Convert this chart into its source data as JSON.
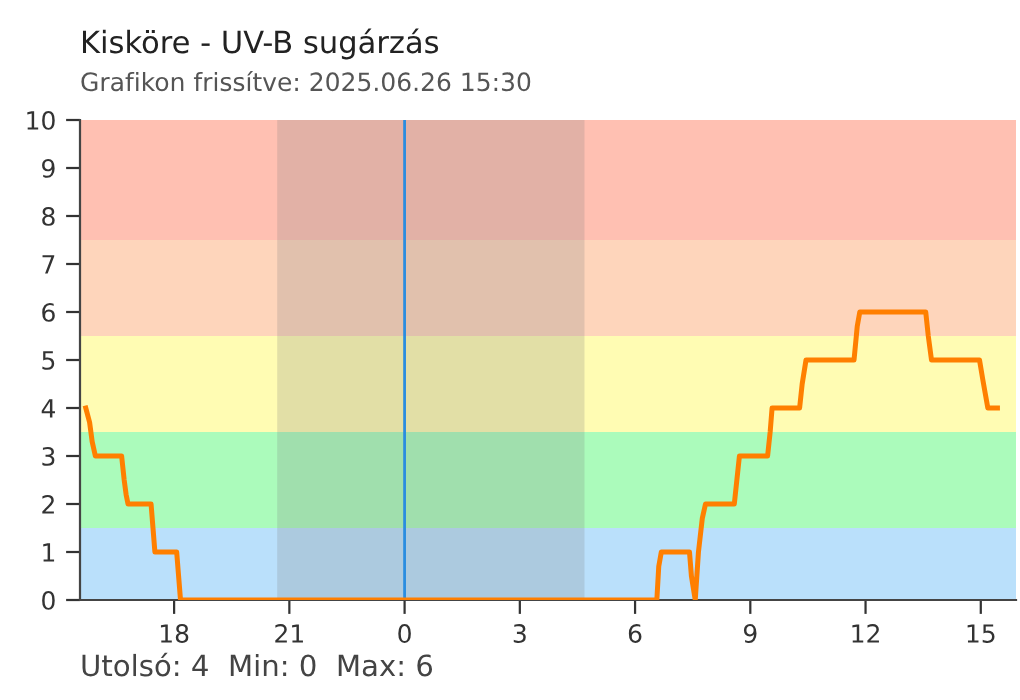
{
  "chart_data": {
    "type": "line",
    "title": "Kisköre - UV-B sugárzás",
    "subtitle": "Grafikon frissítve: 2025.06.26 15:30",
    "x": [
      "2025-06-25T15:42",
      "2025-06-25T15:48",
      "2025-06-25T15:52",
      "2025-06-25T15:57",
      "2025-06-25T16:38",
      "2025-06-25T16:42",
      "2025-06-25T16:45",
      "2025-06-25T16:48",
      "2025-06-25T17:24",
      "2025-06-25T17:27",
      "2025-06-25T17:30",
      "2025-06-25T18:04",
      "2025-06-25T18:07",
      "2025-06-25T18:10",
      "2025-06-26T06:34",
      "2025-06-26T06:37",
      "2025-06-26T06:41",
      "2025-06-26T07:25",
      "2025-06-26T07:28",
      "2025-06-26T07:34",
      "2025-06-26T07:39",
      "2025-06-26T07:45",
      "2025-06-26T07:50",
      "2025-06-26T08:35",
      "2025-06-26T08:39",
      "2025-06-26T08:43",
      "2025-06-26T09:27",
      "2025-06-26T09:31",
      "2025-06-26T09:34",
      "2025-06-26T10:17",
      "2025-06-26T10:21",
      "2025-06-26T10:27",
      "2025-06-26T11:42",
      "2025-06-26T11:47",
      "2025-06-26T11:51",
      "2025-06-26T13:34",
      "2025-06-26T13:38",
      "2025-06-26T13:43",
      "2025-06-26T14:58",
      "2025-06-26T15:03",
      "2025-06-26T15:07",
      "2025-06-26T15:11",
      "2025-06-26T15:26"
    ],
    "series": [
      {
        "color": "#ff7f00",
        "values": [
          4,
          3.7,
          3.3,
          3,
          3,
          2.5,
          2.2,
          2,
          2,
          1.5,
          1,
          1,
          0.5,
          0,
          0,
          0.7,
          1,
          1,
          0.5,
          0,
          1,
          1.7,
          2,
          2,
          2.5,
          3,
          3,
          3.5,
          4,
          4,
          4.5,
          5,
          5,
          5.7,
          6,
          6,
          5.5,
          5,
          5,
          4.6,
          4.3,
          4,
          4
        ]
      }
    ],
    "xlim": [
      "2025-06-25T15:33",
      "2025-06-26T15:55"
    ],
    "ylim": [
      0,
      10
    ],
    "xticks": [
      {
        "value": "2025-06-25T18:00",
        "label": "18"
      },
      {
        "value": "2025-06-25T21:00",
        "label": "21"
      },
      {
        "value": "2025-06-26T00:00",
        "label": "0"
      },
      {
        "value": "2025-06-26T03:00",
        "label": "3"
      },
      {
        "value": "2025-06-26T06:00",
        "label": "6"
      },
      {
        "value": "2025-06-26T09:00",
        "label": "9"
      },
      {
        "value": "2025-06-26T12:00",
        "label": "12"
      },
      {
        "value": "2025-06-26T15:00",
        "label": "15"
      }
    ],
    "yticks": [
      0,
      1,
      2,
      3,
      4,
      5,
      6,
      7,
      8,
      9,
      10
    ],
    "bands": [
      {
        "axis": "y",
        "from": 0,
        "to": 1.5,
        "color": "#bae0fb"
      },
      {
        "axis": "y",
        "from": 1.5,
        "to": 3.5,
        "color": "#abfbbb"
      },
      {
        "axis": "y",
        "from": 3.5,
        "to": 5.5,
        "color": "#fffcb3"
      },
      {
        "axis": "y",
        "from": 5.5,
        "to": 7.5,
        "color": "#fed5bb"
      },
      {
        "axis": "y",
        "from": 7.5,
        "to": 10,
        "color": "#ffc0b2"
      },
      {
        "axis": "x",
        "from": "2025-06-25T20:41",
        "to": "2025-06-26T04:41",
        "color": "#7a7a7a"
      }
    ],
    "ref_lines": [
      {
        "axis": "x",
        "value": "2025-06-26T00:00",
        "color": "#2a8de0"
      }
    ],
    "annotations": [
      "Utolsó: 4  Min: 0  Max: 6"
    ],
    "grid": false,
    "legend": false,
    "marker": "none",
    "line_style": "solid"
  }
}
